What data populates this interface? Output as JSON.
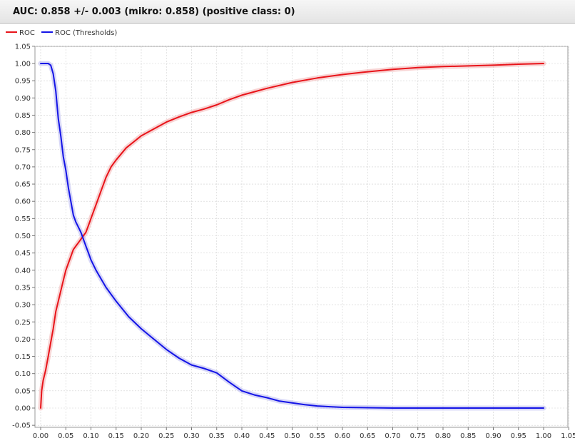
{
  "header": {
    "title": "AUC: 0.858 +/- 0.003 (mikro: 0.858) (positive class: 0)"
  },
  "colors": {
    "roc": "#e8141a",
    "thresholds": "#1414e6",
    "band": "#b8b8f0",
    "grid": "#d0d0d0"
  },
  "chart_data": {
    "type": "line",
    "title": "",
    "xlabel": "",
    "ylabel": "",
    "xlim": [
      0.0,
      1.05
    ],
    "ylim": [
      -0.05,
      1.05
    ],
    "grid": true,
    "legend_position": "top-left",
    "xticks": [
      "0.00",
      "0.05",
      "0.10",
      "0.15",
      "0.20",
      "0.25",
      "0.30",
      "0.35",
      "0.40",
      "0.45",
      "0.50",
      "0.55",
      "0.60",
      "0.65",
      "0.70",
      "0.75",
      "0.80",
      "0.85",
      "0.90",
      "0.95",
      "1.00",
      "1.05"
    ],
    "yticks": [
      "1.05",
      "1.00",
      "0.95",
      "0.90",
      "0.85",
      "0.80",
      "0.75",
      "0.70",
      "0.65",
      "0.60",
      "0.55",
      "0.50",
      "0.45",
      "0.40",
      "0.35",
      "0.30",
      "0.25",
      "0.20",
      "0.15",
      "0.10",
      "0.05",
      "0.00",
      "-0.05"
    ],
    "series": [
      {
        "name": "ROC",
        "color": "#e8141a",
        "x": [
          0.0,
          0.002,
          0.005,
          0.01,
          0.015,
          0.02,
          0.025,
          0.03,
          0.035,
          0.04,
          0.045,
          0.05,
          0.055,
          0.06,
          0.065,
          0.07,
          0.075,
          0.08,
          0.085,
          0.09,
          0.095,
          0.1,
          0.11,
          0.12,
          0.13,
          0.14,
          0.15,
          0.17,
          0.2,
          0.225,
          0.25,
          0.275,
          0.3,
          0.325,
          0.35,
          0.375,
          0.4,
          0.425,
          0.45,
          0.5,
          0.55,
          0.6,
          0.65,
          0.7,
          0.75,
          0.8,
          0.85,
          0.9,
          0.95,
          1.0
        ],
        "y": [
          0.0,
          0.05,
          0.08,
          0.11,
          0.15,
          0.19,
          0.23,
          0.28,
          0.31,
          0.34,
          0.37,
          0.4,
          0.42,
          0.44,
          0.46,
          0.47,
          0.48,
          0.49,
          0.5,
          0.51,
          0.53,
          0.55,
          0.59,
          0.63,
          0.67,
          0.7,
          0.72,
          0.755,
          0.79,
          0.81,
          0.83,
          0.845,
          0.858,
          0.868,
          0.88,
          0.895,
          0.908,
          0.918,
          0.928,
          0.945,
          0.958,
          0.968,
          0.976,
          0.983,
          0.988,
          0.991,
          0.993,
          0.995,
          0.998,
          1.0
        ]
      },
      {
        "name": "ROC (Thresholds)",
        "color": "#1414e6",
        "x": [
          0.0,
          0.005,
          0.01,
          0.015,
          0.02,
          0.025,
          0.03,
          0.035,
          0.04,
          0.045,
          0.05,
          0.055,
          0.06,
          0.065,
          0.07,
          0.075,
          0.08,
          0.085,
          0.09,
          0.095,
          0.1,
          0.11,
          0.12,
          0.13,
          0.15,
          0.175,
          0.2,
          0.225,
          0.25,
          0.275,
          0.3,
          0.325,
          0.35,
          0.375,
          0.4,
          0.425,
          0.45,
          0.475,
          0.5,
          0.525,
          0.55,
          0.575,
          0.6,
          0.65,
          0.7,
          0.75,
          0.8,
          0.85,
          0.9,
          0.95,
          1.0
        ],
        "y": [
          1.0,
          1.0,
          1.0,
          1.0,
          0.995,
          0.97,
          0.92,
          0.84,
          0.79,
          0.73,
          0.69,
          0.64,
          0.6,
          0.56,
          0.54,
          0.525,
          0.51,
          0.49,
          0.47,
          0.45,
          0.43,
          0.4,
          0.375,
          0.35,
          0.31,
          0.265,
          0.23,
          0.2,
          0.17,
          0.145,
          0.125,
          0.115,
          0.102,
          0.075,
          0.05,
          0.038,
          0.03,
          0.02,
          0.015,
          0.01,
          0.006,
          0.004,
          0.002,
          0.001,
          0.0,
          0.0,
          0.0,
          0.0,
          0.0,
          0.0,
          0.0
        ]
      }
    ]
  }
}
